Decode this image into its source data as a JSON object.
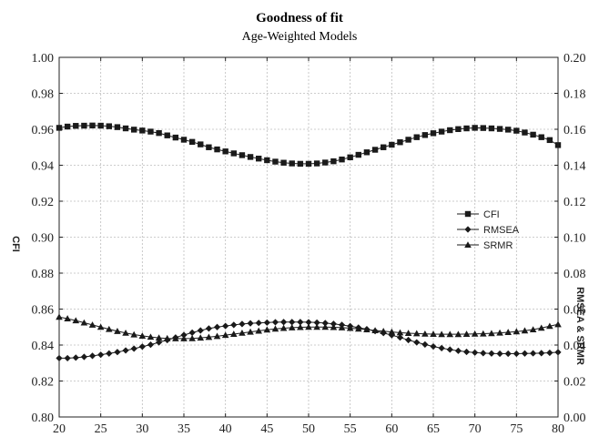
{
  "chart_data": {
    "type": "line",
    "title": "Goodness of fit",
    "subtitle": "Age-Weighted Models",
    "ylabel_left": "CFI",
    "ylabel_right": "RMSEA & SRMR",
    "xlim": [
      20,
      80
    ],
    "ylim_left": [
      0.8,
      1.0
    ],
    "ylim_right": [
      0.0,
      0.2
    ],
    "x_ticks": [
      "20",
      "25",
      "30",
      "35",
      "40",
      "45",
      "50",
      "55",
      "60",
      "65",
      "70",
      "75",
      "80"
    ],
    "y_left_ticks": [
      "0.80",
      "0.82",
      "0.84",
      "0.86",
      "0.88",
      "0.90",
      "0.92",
      "0.94",
      "0.96",
      "0.98",
      "1.00"
    ],
    "y_right_ticks": [
      "0.00",
      "0.02",
      "0.04",
      "0.06",
      "0.08",
      "0.10",
      "0.12",
      "0.14",
      "0.16",
      "0.18",
      "0.20"
    ],
    "grid": true,
    "legend_position": "right",
    "x": [
      20,
      21,
      22,
      23,
      24,
      25,
      26,
      27,
      28,
      29,
      30,
      31,
      32,
      33,
      34,
      35,
      36,
      37,
      38,
      39,
      40,
      41,
      42,
      43,
      44,
      45,
      46,
      47,
      48,
      49,
      50,
      51,
      52,
      53,
      54,
      55,
      56,
      57,
      58,
      59,
      60,
      61,
      62,
      63,
      64,
      65,
      66,
      67,
      68,
      69,
      70,
      71,
      72,
      73,
      74,
      75,
      76,
      77,
      78,
      79,
      80
    ],
    "series": [
      {
        "name": "CFI",
        "axis": "left",
        "marker": "square",
        "values": [
          0.9608,
          0.9615,
          0.9619,
          0.962,
          0.9621,
          0.962,
          0.9617,
          0.9612,
          0.9605,
          0.9598,
          0.9593,
          0.9587,
          0.9579,
          0.9566,
          0.9554,
          0.9542,
          0.953,
          0.9516,
          0.95,
          0.9488,
          0.9477,
          0.9466,
          0.9456,
          0.9446,
          0.9437,
          0.9428,
          0.942,
          0.9414,
          0.941,
          0.9408,
          0.9408,
          0.941,
          0.9415,
          0.9422,
          0.9432,
          0.9444,
          0.9458,
          0.9472,
          0.9486,
          0.95,
          0.9514,
          0.9528,
          0.9542,
          0.9556,
          0.9568,
          0.9578,
          0.9587,
          0.9595,
          0.9601,
          0.9605,
          0.9608,
          0.9607,
          0.9605,
          0.9602,
          0.9598,
          0.9592,
          0.9582,
          0.957,
          0.9556,
          0.954,
          0.9512
        ]
      },
      {
        "name": "RMSEA",
        "axis": "right",
        "marker": "diamond",
        "values": [
          0.0327,
          0.0327,
          0.033,
          0.0334,
          0.034,
          0.0346,
          0.0353,
          0.0361,
          0.037,
          0.038,
          0.0391,
          0.0402,
          0.0415,
          0.0428,
          0.0442,
          0.0456,
          0.0469,
          0.0481,
          0.0492,
          0.05,
          0.0506,
          0.0512,
          0.0517,
          0.0521,
          0.0523,
          0.0525,
          0.0527,
          0.0528,
          0.0528,
          0.0528,
          0.0527,
          0.0525,
          0.0522,
          0.0518,
          0.0512,
          0.0505,
          0.0497,
          0.0488,
          0.0478,
          0.0467,
          0.0455,
          0.0442,
          0.0428,
          0.0415,
          0.0403,
          0.0392,
          0.0383,
          0.0375,
          0.0368,
          0.0362,
          0.0358,
          0.0355,
          0.0353,
          0.0352,
          0.0352,
          0.0352,
          0.0353,
          0.0354,
          0.0355,
          0.0357,
          0.036
        ]
      },
      {
        "name": "SRMR",
        "axis": "right",
        "marker": "triangle",
        "values": [
          0.0556,
          0.0547,
          0.0536,
          0.0524,
          0.0512,
          0.05,
          0.0488,
          0.0477,
          0.0467,
          0.0458,
          0.0451,
          0.0445,
          0.044,
          0.0437,
          0.0436,
          0.0436,
          0.0437,
          0.044,
          0.0444,
          0.0449,
          0.0455,
          0.0461,
          0.0467,
          0.0473,
          0.0479,
          0.0485,
          0.049,
          0.0494,
          0.0497,
          0.0499,
          0.05,
          0.05,
          0.05,
          0.0499,
          0.0497,
          0.0494,
          0.049,
          0.0486,
          0.0481,
          0.0477,
          0.0473,
          0.0469,
          0.0466,
          0.0464,
          0.0462,
          0.0461,
          0.046,
          0.046,
          0.046,
          0.0461,
          0.0462,
          0.0463,
          0.0465,
          0.0468,
          0.0471,
          0.0475,
          0.048,
          0.0486,
          0.0495,
          0.0505,
          0.0515
        ]
      }
    ]
  }
}
